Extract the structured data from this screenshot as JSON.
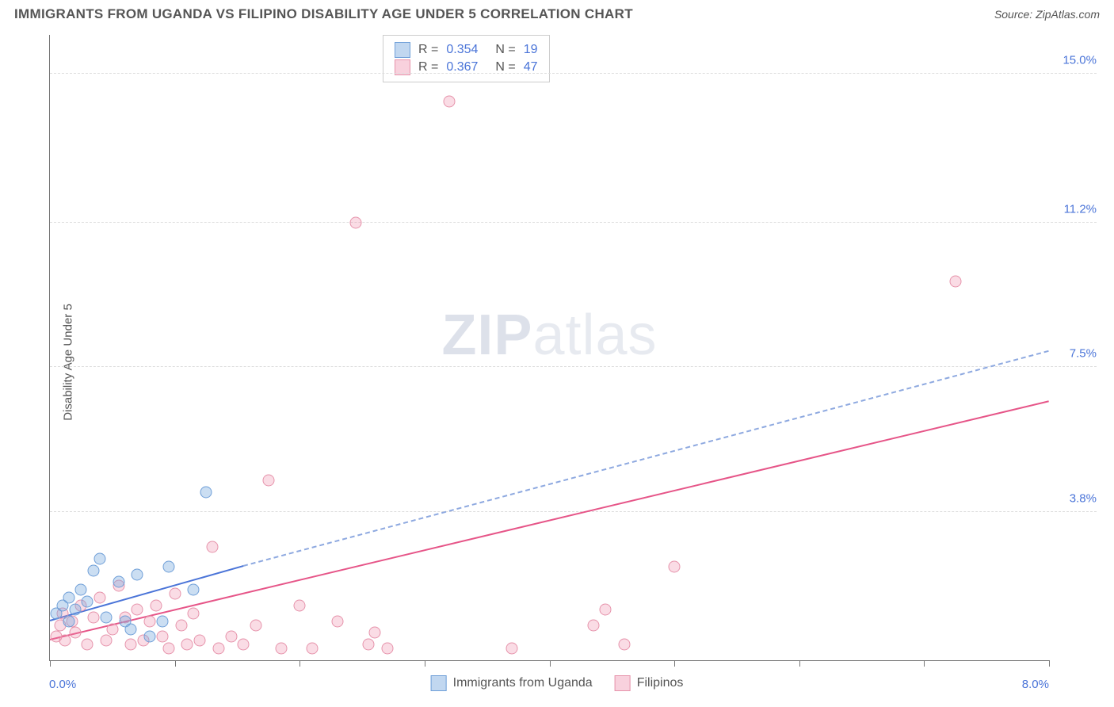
{
  "header": {
    "title": "IMMIGRANTS FROM UGANDA VS FILIPINO DISABILITY AGE UNDER 5 CORRELATION CHART",
    "source_prefix": "Source: ",
    "source_name": "ZipAtlas.com"
  },
  "watermark": {
    "zip": "ZIP",
    "atlas": "atlas"
  },
  "chart": {
    "type": "scatter",
    "ylabel": "Disability Age Under 5",
    "xlim": [
      0.0,
      8.0
    ],
    "ylim": [
      0.0,
      16.0
    ],
    "x_axis_min_label": "0.0%",
    "x_axis_max_label": "8.0%",
    "y_ticks": [
      {
        "v": 3.8,
        "label": "3.8%"
      },
      {
        "v": 7.5,
        "label": "7.5%"
      },
      {
        "v": 11.2,
        "label": "11.2%"
      },
      {
        "v": 15.0,
        "label": "15.0%"
      }
    ],
    "x_tick_positions": [
      0,
      1,
      2,
      3,
      4,
      5,
      6,
      7,
      8
    ],
    "series_blue": {
      "name": "Immigrants from Uganda",
      "color_fill": "rgba(117,167,222,0.38)",
      "color_stroke": "#6f9fd8",
      "marker_size_px": 15,
      "points": [
        [
          0.05,
          1.2
        ],
        [
          0.1,
          1.4
        ],
        [
          0.15,
          1.0
        ],
        [
          0.15,
          1.6
        ],
        [
          0.2,
          1.3
        ],
        [
          0.25,
          1.8
        ],
        [
          0.3,
          1.5
        ],
        [
          0.35,
          2.3
        ],
        [
          0.4,
          2.6
        ],
        [
          0.45,
          1.1
        ],
        [
          0.55,
          2.0
        ],
        [
          0.6,
          1.0
        ],
        [
          0.65,
          0.8
        ],
        [
          0.7,
          2.2
        ],
        [
          0.8,
          0.6
        ],
        [
          0.9,
          1.0
        ],
        [
          0.95,
          2.4
        ],
        [
          1.15,
          1.8
        ],
        [
          1.25,
          4.3
        ]
      ],
      "regression": {
        "x1": 0.0,
        "y1": 1.0,
        "x2": 1.55,
        "y2": 2.4,
        "xd2": 8.0,
        "yd2": 7.9
      }
    },
    "series_pink": {
      "name": "Filipinos",
      "color_fill": "rgba(238,140,170,0.30)",
      "color_stroke": "#e693ab",
      "marker_size_px": 15,
      "points": [
        [
          0.05,
          0.6
        ],
        [
          0.08,
          0.9
        ],
        [
          0.1,
          1.2
        ],
        [
          0.12,
          0.5
        ],
        [
          0.18,
          1.0
        ],
        [
          0.2,
          0.7
        ],
        [
          0.25,
          1.4
        ],
        [
          0.3,
          0.4
        ],
        [
          0.35,
          1.1
        ],
        [
          0.4,
          1.6
        ],
        [
          0.45,
          0.5
        ],
        [
          0.5,
          0.8
        ],
        [
          0.55,
          1.9
        ],
        [
          0.6,
          1.1
        ],
        [
          0.65,
          0.4
        ],
        [
          0.7,
          1.3
        ],
        [
          0.75,
          0.5
        ],
        [
          0.8,
          1.0
        ],
        [
          0.85,
          1.4
        ],
        [
          0.9,
          0.6
        ],
        [
          0.95,
          0.3
        ],
        [
          1.0,
          1.7
        ],
        [
          1.05,
          0.9
        ],
        [
          1.1,
          0.4
        ],
        [
          1.15,
          1.2
        ],
        [
          1.2,
          0.5
        ],
        [
          1.3,
          2.9
        ],
        [
          1.35,
          0.3
        ],
        [
          1.45,
          0.6
        ],
        [
          1.55,
          0.4
        ],
        [
          1.65,
          0.9
        ],
        [
          1.75,
          4.6
        ],
        [
          1.85,
          0.3
        ],
        [
          2.0,
          1.4
        ],
        [
          2.1,
          0.3
        ],
        [
          2.3,
          1.0
        ],
        [
          2.45,
          11.2
        ],
        [
          2.55,
          0.4
        ],
        [
          2.6,
          0.7
        ],
        [
          2.7,
          0.3
        ],
        [
          3.2,
          14.3
        ],
        [
          3.7,
          0.3
        ],
        [
          4.35,
          0.9
        ],
        [
          4.45,
          1.3
        ],
        [
          4.6,
          0.4
        ],
        [
          5.0,
          2.4
        ],
        [
          7.25,
          9.7
        ]
      ],
      "regression": {
        "x1": 0.0,
        "y1": 0.5,
        "x2": 8.0,
        "y2": 6.6
      }
    },
    "stats_legend": {
      "rows": [
        {
          "swatch": "blue",
          "r_label": "R =",
          "r": "0.354",
          "n_label": "N =",
          "n": "19"
        },
        {
          "swatch": "pink",
          "r_label": "R =",
          "r": "0.367",
          "n_label": "N =",
          "n": "47"
        }
      ]
    },
    "bottom_legend": [
      {
        "swatch": "blue",
        "label": "Immigrants from Uganda"
      },
      {
        "swatch": "pink",
        "label": "Filipinos"
      }
    ]
  }
}
